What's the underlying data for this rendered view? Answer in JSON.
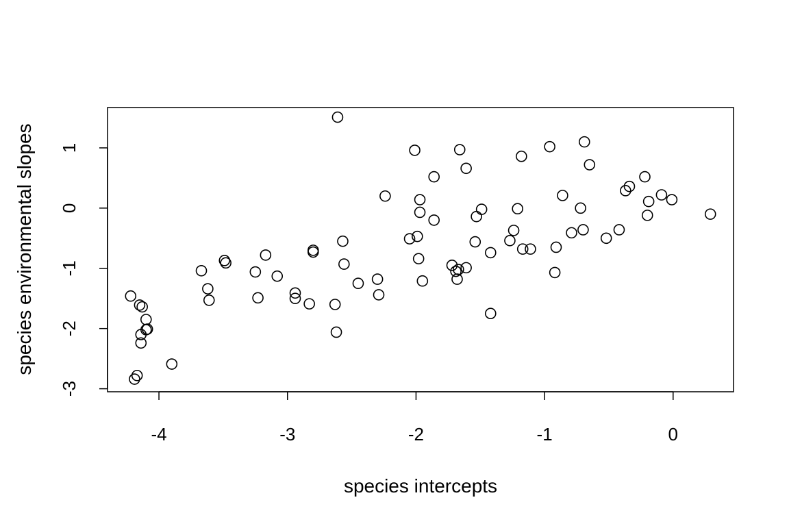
{
  "chart_data": {
    "type": "scatter",
    "title": "",
    "xlabel": "species intercepts",
    "ylabel": "species environmental slopes",
    "xlim": [
      -4.4,
      0.47
    ],
    "ylim": [
      -3.05,
      1.67
    ],
    "xticks": [
      -4,
      -3,
      -2,
      -1,
      0
    ],
    "yticks": [
      -3,
      -2,
      -1,
      0,
      1
    ],
    "grid": false,
    "legend": "none",
    "point_style": "open-circle",
    "colors": {
      "marker": "#000000",
      "axes": "#000000",
      "background": "#ffffff"
    },
    "points": [
      {
        "x": -4.22,
        "y": -1.46
      },
      {
        "x": -4.15,
        "y": -1.61
      },
      {
        "x": -4.13,
        "y": -1.64
      },
      {
        "x": -4.1,
        "y": -1.85
      },
      {
        "x": -4.09,
        "y": -2.01
      },
      {
        "x": -4.1,
        "y": -2.02
      },
      {
        "x": -4.14,
        "y": -2.1
      },
      {
        "x": -4.14,
        "y": -2.24
      },
      {
        "x": -4.17,
        "y": -2.78
      },
      {
        "x": -4.19,
        "y": -2.84
      },
      {
        "x": -3.9,
        "y": -2.59
      },
      {
        "x": -3.67,
        "y": -1.04
      },
      {
        "x": -3.62,
        "y": -1.34
      },
      {
        "x": -3.61,
        "y": -1.53
      },
      {
        "x": -3.49,
        "y": -0.87
      },
      {
        "x": -3.48,
        "y": -0.91
      },
      {
        "x": -3.25,
        "y": -1.06
      },
      {
        "x": -3.23,
        "y": -1.49
      },
      {
        "x": -3.17,
        "y": -0.78
      },
      {
        "x": -3.08,
        "y": -1.13
      },
      {
        "x": -2.94,
        "y": -1.41
      },
      {
        "x": -2.94,
        "y": -1.5
      },
      {
        "x": -2.83,
        "y": -1.59
      },
      {
        "x": -2.8,
        "y": -0.7
      },
      {
        "x": -2.8,
        "y": -0.73
      },
      {
        "x": -2.63,
        "y": -1.6
      },
      {
        "x": -2.62,
        "y": -2.06
      },
      {
        "x": -2.61,
        "y": 1.51
      },
      {
        "x": -2.57,
        "y": -0.55
      },
      {
        "x": -2.56,
        "y": -0.93
      },
      {
        "x": -2.45,
        "y": -1.25
      },
      {
        "x": -2.3,
        "y": -1.18
      },
      {
        "x": -2.29,
        "y": -1.44
      },
      {
        "x": -2.24,
        "y": 0.2
      },
      {
        "x": -2.05,
        "y": -0.51
      },
      {
        "x": -2.01,
        "y": 0.96
      },
      {
        "x": -1.99,
        "y": -0.47
      },
      {
        "x": -1.98,
        "y": -0.84
      },
      {
        "x": -1.97,
        "y": 0.14
      },
      {
        "x": -1.97,
        "y": -0.07
      },
      {
        "x": -1.95,
        "y": -1.21
      },
      {
        "x": -1.86,
        "y": 0.52
      },
      {
        "x": -1.86,
        "y": -0.2
      },
      {
        "x": -1.72,
        "y": -0.95
      },
      {
        "x": -1.69,
        "y": -1.05
      },
      {
        "x": -1.68,
        "y": -1.18
      },
      {
        "x": -1.67,
        "y": -1.02
      },
      {
        "x": -1.66,
        "y": 0.97
      },
      {
        "x": -1.61,
        "y": 0.66
      },
      {
        "x": -1.61,
        "y": -0.99
      },
      {
        "x": -1.54,
        "y": -0.56
      },
      {
        "x": -1.53,
        "y": -0.14
      },
      {
        "x": -1.49,
        "y": -0.02
      },
      {
        "x": -1.42,
        "y": -0.74
      },
      {
        "x": -1.42,
        "y": -1.75
      },
      {
        "x": -1.27,
        "y": -0.54
      },
      {
        "x": -1.24,
        "y": -0.37
      },
      {
        "x": -1.21,
        "y": -0.01
      },
      {
        "x": -1.18,
        "y": 0.86
      },
      {
        "x": -1.17,
        "y": -0.68
      },
      {
        "x": -1.11,
        "y": -0.68
      },
      {
        "x": -0.96,
        "y": 1.02
      },
      {
        "x": -0.92,
        "y": -1.07
      },
      {
        "x": -0.91,
        "y": -0.65
      },
      {
        "x": -0.86,
        "y": 0.21
      },
      {
        "x": -0.79,
        "y": -0.41
      },
      {
        "x": -0.72,
        "y": 0.0
      },
      {
        "x": -0.7,
        "y": -0.36
      },
      {
        "x": -0.69,
        "y": 1.1
      },
      {
        "x": -0.65,
        "y": 0.72
      },
      {
        "x": -0.52,
        "y": -0.5
      },
      {
        "x": -0.42,
        "y": -0.36
      },
      {
        "x": -0.37,
        "y": 0.29
      },
      {
        "x": -0.34,
        "y": 0.36
      },
      {
        "x": -0.22,
        "y": 0.52
      },
      {
        "x": -0.2,
        "y": -0.12
      },
      {
        "x": -0.19,
        "y": 0.11
      },
      {
        "x": -0.09,
        "y": 0.22
      },
      {
        "x": -0.01,
        "y": 0.14
      },
      {
        "x": 0.29,
        "y": -0.1
      }
    ]
  }
}
